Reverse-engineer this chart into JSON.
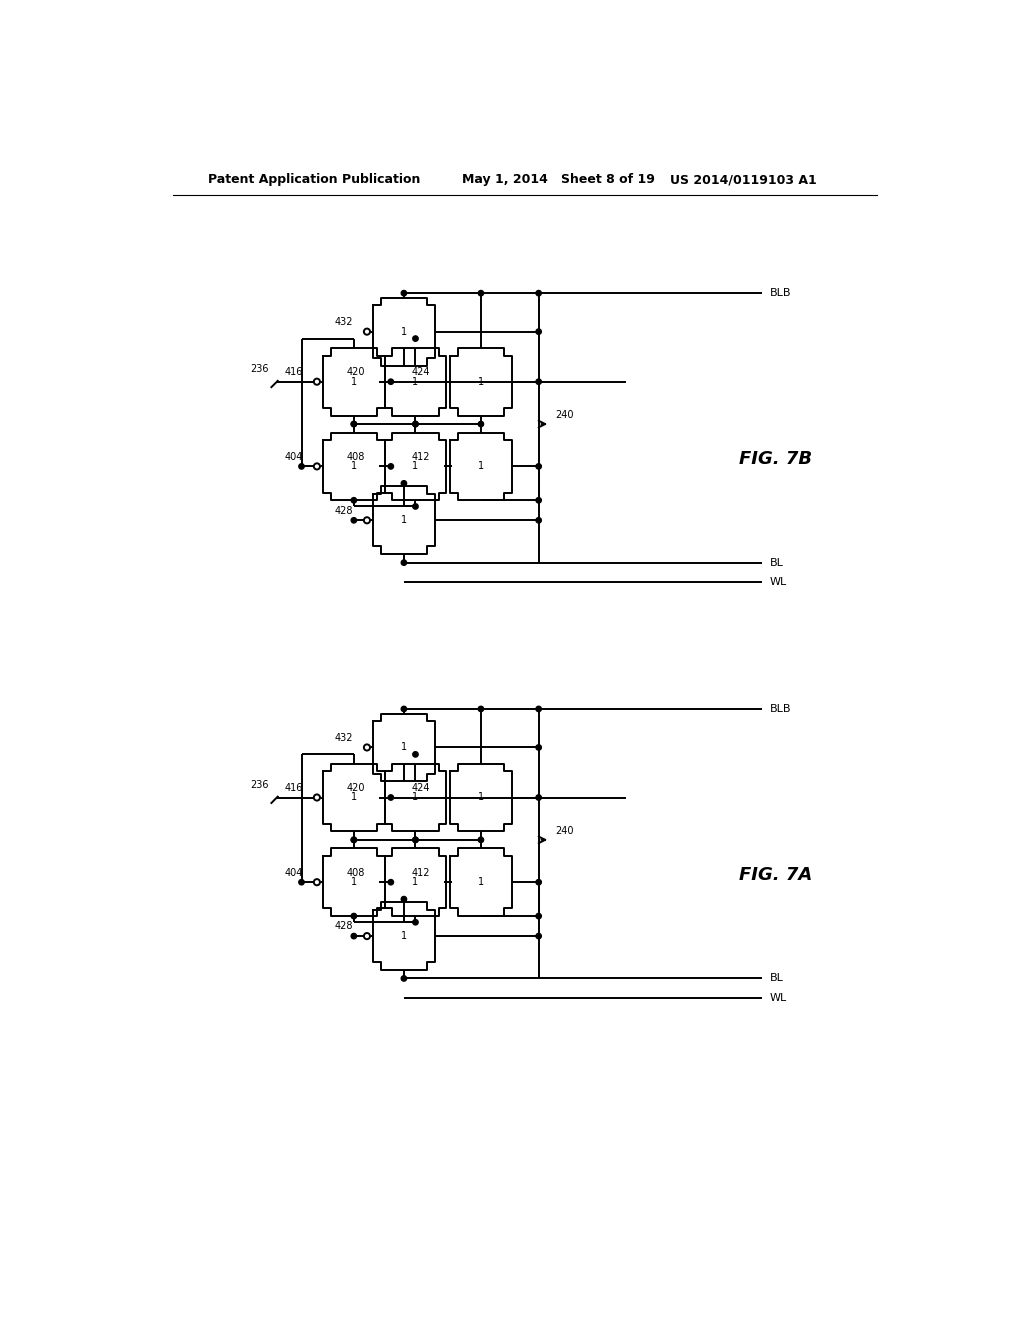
{
  "header_left": "Patent Application Publication",
  "header_mid": "May 1, 2014   Sheet 8 of 19",
  "header_right": "US 2014/0119103 A1",
  "fig7b_label": "FIG. 7B",
  "fig7a_label": "FIG. 7A",
  "bg_color": "#ffffff",
  "line_color": "#000000"
}
